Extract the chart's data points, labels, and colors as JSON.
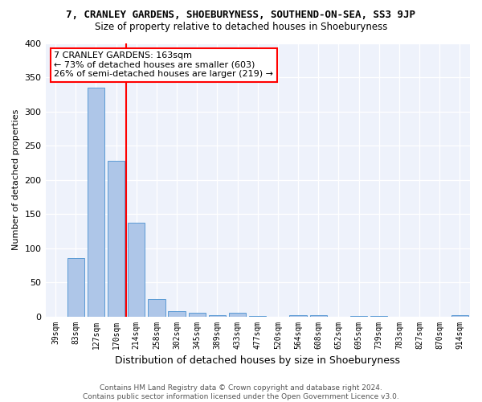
{
  "title1": "7, CRANLEY GARDENS, SHOEBURYNESS, SOUTHEND-ON-SEA, SS3 9JP",
  "title2": "Size of property relative to detached houses in Shoeburyness",
  "xlabel": "Distribution of detached houses by size in Shoeburyness",
  "ylabel": "Number of detached properties",
  "categories": [
    "39sqm",
    "83sqm",
    "127sqm",
    "170sqm",
    "214sqm",
    "258sqm",
    "302sqm",
    "345sqm",
    "389sqm",
    "433sqm",
    "477sqm",
    "520sqm",
    "564sqm",
    "608sqm",
    "652sqm",
    "695sqm",
    "739sqm",
    "783sqm",
    "827sqm",
    "870sqm",
    "914sqm"
  ],
  "values": [
    0,
    85,
    335,
    228,
    137,
    25,
    8,
    5,
    2,
    5,
    1,
    0,
    2,
    2,
    0,
    1,
    1,
    0,
    0,
    0,
    2
  ],
  "bar_color": "#aec6e8",
  "bar_edge_color": "#5b9bd5",
  "vline_position": 3.5,
  "vline_color": "red",
  "annotation_text": "7 CRANLEY GARDENS: 163sqm\n← 73% of detached houses are smaller (603)\n26% of semi-detached houses are larger (219) →",
  "annotation_box_color": "white",
  "annotation_box_edge_color": "red",
  "ylim": [
    0,
    400
  ],
  "yticks": [
    0,
    50,
    100,
    150,
    200,
    250,
    300,
    350,
    400
  ],
  "bg_color": "#eef2fb",
  "footer": "Contains HM Land Registry data © Crown copyright and database right 2024.\nContains public sector information licensed under the Open Government Licence v3.0."
}
